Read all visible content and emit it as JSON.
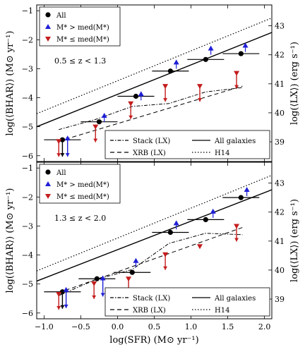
{
  "chart_data": {
    "type": "scatter",
    "xlabel": "log(SFR) (M⊙ yr⁻¹)",
    "ylabel": "log(⟨BHAR⟩) (M⊙ yr⁻¹)",
    "ylabel_right": "log(⟨LX⟩) (erg s⁻¹)",
    "xlim": [
      -1.1,
      2.1
    ],
    "ylim": [
      -6.2,
      -0.8
    ],
    "ylim_right": [
      38.32,
      43.72
    ],
    "x_ticks": [
      -1.0,
      -0.5,
      0.0,
      0.5,
      1.0,
      1.5,
      2.0
    ],
    "x_tick_labels": [
      "−1.0",
      "−0.5",
      "0.0",
      "0.5",
      "1.0",
      "1.5",
      "2.0"
    ],
    "y_ticks": [
      -6,
      -5,
      -4,
      -3,
      -2,
      -1
    ],
    "y_tick_labels": [
      "−6",
      "−5",
      "−4",
      "−3",
      "−2",
      "−1"
    ],
    "y_ticks_right": [
      39,
      40,
      41,
      42,
      43
    ],
    "y_tick_labels_right": [
      "39",
      "40",
      "41",
      "42",
      "43"
    ],
    "legend_points": [
      {
        "name": "All",
        "color": "#000000",
        "marker": "circle"
      },
      {
        "name": "M* > med(M*)",
        "color": "#1f1fd6",
        "marker": "triangle-up"
      },
      {
        "name": "M* ≤ med(M*)",
        "color": "#c41c1c",
        "marker": "triangle-down"
      }
    ],
    "legend_lines": [
      {
        "name": "Stack (LX)",
        "style": "dashdot"
      },
      {
        "name": "All galaxies",
        "style": "solid"
      },
      {
        "name": "XRB (LX)",
        "style": "dashed"
      },
      {
        "name": "H14",
        "style": "dotted"
      }
    ],
    "panels": [
      {
        "label": "0.5 ≤ z < 1.3",
        "all": [
          {
            "x": -0.75,
            "y": -5.45,
            "xerr": 0.25,
            "upper_limit": true
          },
          {
            "x": -0.25,
            "y": -4.83,
            "xerr": 0.25
          },
          {
            "x": 0.25,
            "y": -3.95,
            "xerr": 0.25
          },
          {
            "x": 0.72,
            "y": -3.08,
            "xerr": 0.25
          },
          {
            "x": 1.2,
            "y": -2.68,
            "xerr": 0.25
          },
          {
            "x": 1.68,
            "y": -2.48,
            "xerr": 0.25
          }
        ],
        "high_mass": [
          {
            "x": -0.68,
            "y": -5.4,
            "upper_limit": true
          },
          {
            "x": -0.18,
            "y": -4.62
          },
          {
            "x": 0.32,
            "y": -3.87
          },
          {
            "x": 0.8,
            "y": -2.78
          },
          {
            "x": 1.27,
            "y": -2.3
          },
          {
            "x": 1.74,
            "y": -2.2
          }
        ],
        "low_mass": [
          {
            "x": -0.8,
            "y": -5.5,
            "upper_limit": true
          },
          {
            "x": -0.3,
            "y": -5.0,
            "upper_limit": true
          },
          {
            "x": 0.18,
            "y": -4.2,
            "upper_limit": true
          },
          {
            "x": 0.65,
            "y": -3.6,
            "upper_limit": true
          },
          {
            "x": 1.12,
            "y": -3.6,
            "upper_limit": true
          },
          {
            "x": 1.62,
            "y": -3.15,
            "upper_limit": true
          }
        ],
        "stack_line": {
          "x": [
            -0.8,
            -0.3,
            0.2,
            0.7,
            1.2,
            1.7
          ],
          "y": [
            -5.1,
            -4.75,
            -4.3,
            -4.2,
            -3.8,
            -3.65
          ]
        },
        "xrb_line": {
          "x": [
            -0.8,
            1.7
          ],
          "y": [
            -5.5,
            -3.6
          ]
        },
        "all_galaxies_line": {
          "x": [
            -1.1,
            2.1
          ],
          "y": [
            -5.0,
            -1.75
          ]
        },
        "h14_line": {
          "x": [
            -1.1,
            2.1
          ],
          "y": [
            -4.55,
            -1.25
          ]
        }
      },
      {
        "label": "1.3 ≤ z < 2.0",
        "all": [
          {
            "x": -0.75,
            "y": -5.27,
            "xerr": 0.25,
            "upper_limit": true
          },
          {
            "x": -0.28,
            "y": -4.82,
            "xerr": 0.25
          },
          {
            "x": 0.2,
            "y": -4.6,
            "xerr": 0.25
          },
          {
            "x": 0.72,
            "y": -3.22,
            "xerr": 0.25
          },
          {
            "x": 1.2,
            "y": -2.78,
            "xerr": 0.25
          },
          {
            "x": 1.68,
            "y": -2.02,
            "xerr": 0.25
          }
        ],
        "high_mass": [
          {
            "x": -0.7,
            "y": -5.2,
            "upper_limit": true
          },
          {
            "x": -0.2,
            "y": -4.8,
            "upper_limit": true
          },
          {
            "x": 0.25,
            "y": -4.2
          },
          {
            "x": 0.8,
            "y": -2.9
          },
          {
            "x": 1.3,
            "y": -2.5
          },
          {
            "x": 1.76,
            "y": -1.75
          }
        ],
        "low_mass": [
          {
            "x": -0.8,
            "y": -5.35,
            "upper_limit": true
          },
          {
            "x": -0.32,
            "y": -4.98,
            "upper_limit": true
          },
          {
            "x": 0.15,
            "y": -4.82,
            "upper_limit": true
          },
          {
            "x": 0.65,
            "y": -3.98,
            "upper_limit": true
          },
          {
            "x": 1.12,
            "y": -3.7
          },
          {
            "x": 1.62,
            "y": -3.0,
            "upper_limit": true
          }
        ],
        "stack_line": {
          "x": [
            -0.8,
            -0.3,
            0.2,
            0.7,
            1.2,
            1.7
          ],
          "y": [
            -5.4,
            -4.85,
            -4.5,
            -3.6,
            -3.25,
            -3.3
          ]
        },
        "xrb_line": {
          "x": [
            -0.8,
            1.7
          ],
          "y": [
            -5.3,
            -3.05
          ]
        },
        "all_galaxies_line": {
          "x": [
            -1.1,
            2.1
          ],
          "y": [
            -4.9,
            -1.75
          ]
        },
        "h14_line": {
          "x": [
            -1.1,
            2.1
          ],
          "y": [
            -4.55,
            -1.25
          ]
        }
      }
    ]
  }
}
